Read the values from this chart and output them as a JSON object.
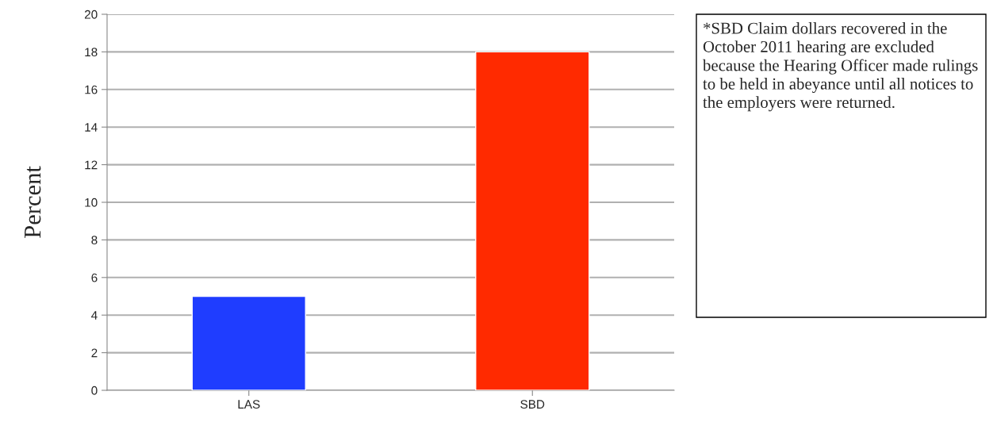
{
  "chart_data": {
    "type": "bar",
    "ylabel": "Percent",
    "categories": [
      "LAS",
      "SBD"
    ],
    "values": [
      5,
      18
    ],
    "colors": [
      "#1f3dff",
      "#ff2a00"
    ],
    "ylim": [
      0,
      20
    ],
    "yticks": [
      0,
      2,
      4,
      6,
      8,
      10,
      12,
      14,
      16,
      18,
      20
    ],
    "grid": "y",
    "annotations": [
      "*SBD Claim dollars recovered in the October 2011 hearing are excluded because the Hearing Officer made rulings to be held in abeyance until all notices to the employers were returned."
    ]
  }
}
